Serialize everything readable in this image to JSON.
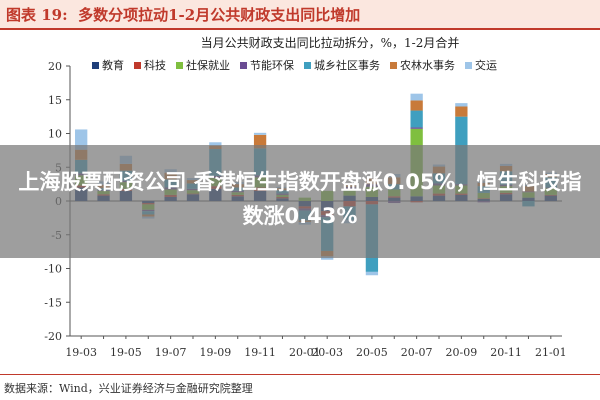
{
  "figure_label": "图表 19:",
  "figure_title": "多数分项拉动1-2月公共财政支出同比增加",
  "banner_text": "上海股票配资公司 香港恒生指数开盘涨0.05%，恒生科技指数涨0.43%",
  "source": "数据来源：Wind，兴业证券经济与金融研究院整理",
  "chart_data": {
    "type": "bar",
    "stacked": true,
    "title": "当月公共财政支出同比拉动拆分，%，1-2月合并",
    "ylim": [
      -20,
      20
    ],
    "yticks": [
      -20,
      -15,
      -10,
      -5,
      0,
      5,
      10,
      15,
      20
    ],
    "xtick_labels": [
      "19-03",
      "19-05",
      "19-07",
      "19-09",
      "19-11",
      "20-01",
      "20-03",
      "20-05",
      "20-07",
      "20-09",
      "20-11",
      "21-01"
    ],
    "categories": [
      "19-03",
      "19-04",
      "19-05",
      "19-06",
      "19-07",
      "19-08",
      "19-09",
      "19-10",
      "19-11",
      "19-12",
      "20-01",
      "20-03",
      "20-04",
      "20-05",
      "20-06",
      "20-07",
      "20-08",
      "20-09",
      "20-10",
      "20-11",
      "20-12",
      "21-01"
    ],
    "legend_position": "top",
    "series": [
      {
        "name": "教育",
        "color": "#1f3f7a",
        "values": [
          2.0,
          0.8,
          1.5,
          -0.3,
          0.6,
          1.0,
          1.8,
          0.7,
          1.5,
          0.4,
          -0.8,
          -1.5,
          0.8,
          0.6,
          0.5,
          0.7,
          0.8,
          0.9,
          0.3,
          1.0,
          0.5,
          0.8
        ]
      },
      {
        "name": "科技",
        "color": "#c0392b",
        "values": [
          0.3,
          0.2,
          0.3,
          -0.2,
          0.3,
          0.1,
          0.4,
          0.2,
          0.5,
          0.2,
          -0.3,
          -0.6,
          -0.8,
          -0.5,
          0.2,
          -0.2,
          0.3,
          0.2,
          0.1,
          0.2,
          0.0,
          0.1
        ]
      },
      {
        "name": "社保就业",
        "color": "#7fbf3f",
        "values": [
          1.5,
          0.5,
          1.0,
          -0.8,
          0.8,
          0.5,
          1.2,
          0.4,
          1.5,
          0.3,
          0.5,
          1.5,
          1.0,
          1.5,
          1.0,
          10.0,
          1.2,
          1.2,
          0.8,
          1.0,
          0.8,
          1.0
        ]
      },
      {
        "name": "节能环保",
        "color": "#6a4c93",
        "values": [
          0.3,
          0.1,
          0.2,
          -0.2,
          0.3,
          0.2,
          0.3,
          0.2,
          0.3,
          0.2,
          -0.3,
          -0.3,
          0.3,
          0.4,
          -0.3,
          0.2,
          0.3,
          0.2,
          -0.2,
          0.2,
          0.1,
          0.1
        ]
      },
      {
        "name": "城乡社区事务",
        "color": "#3f9fbf",
        "values": [
          2.0,
          0.3,
          1.5,
          -0.5,
          1.2,
          0.8,
          4.0,
          0.5,
          4.0,
          0.5,
          -1.5,
          -5.0,
          -2.0,
          -10.0,
          0.8,
          2.5,
          1.5,
          10.0,
          1.0,
          2.0,
          -0.8,
          1.5
        ]
      },
      {
        "name": "农林水事务",
        "color": "#c87a3a",
        "values": [
          1.5,
          0.5,
          1.0,
          -0.3,
          1.0,
          0.5,
          0.5,
          0.5,
          2.0,
          0.3,
          -0.2,
          -0.8,
          0.5,
          0.8,
          1.0,
          1.5,
          1.0,
          1.5,
          0.5,
          0.8,
          0.8,
          0.5
        ]
      },
      {
        "name": "交运",
        "color": "#9ec5e8",
        "values": [
          3.0,
          0.5,
          1.2,
          -0.3,
          0.5,
          0.3,
          0.5,
          0.3,
          0.3,
          0.2,
          -0.4,
          -0.5,
          -0.5,
          -0.5,
          0.5,
          1.0,
          0.3,
          0.5,
          0.2,
          0.3,
          0.2,
          0.2
        ]
      }
    ]
  }
}
